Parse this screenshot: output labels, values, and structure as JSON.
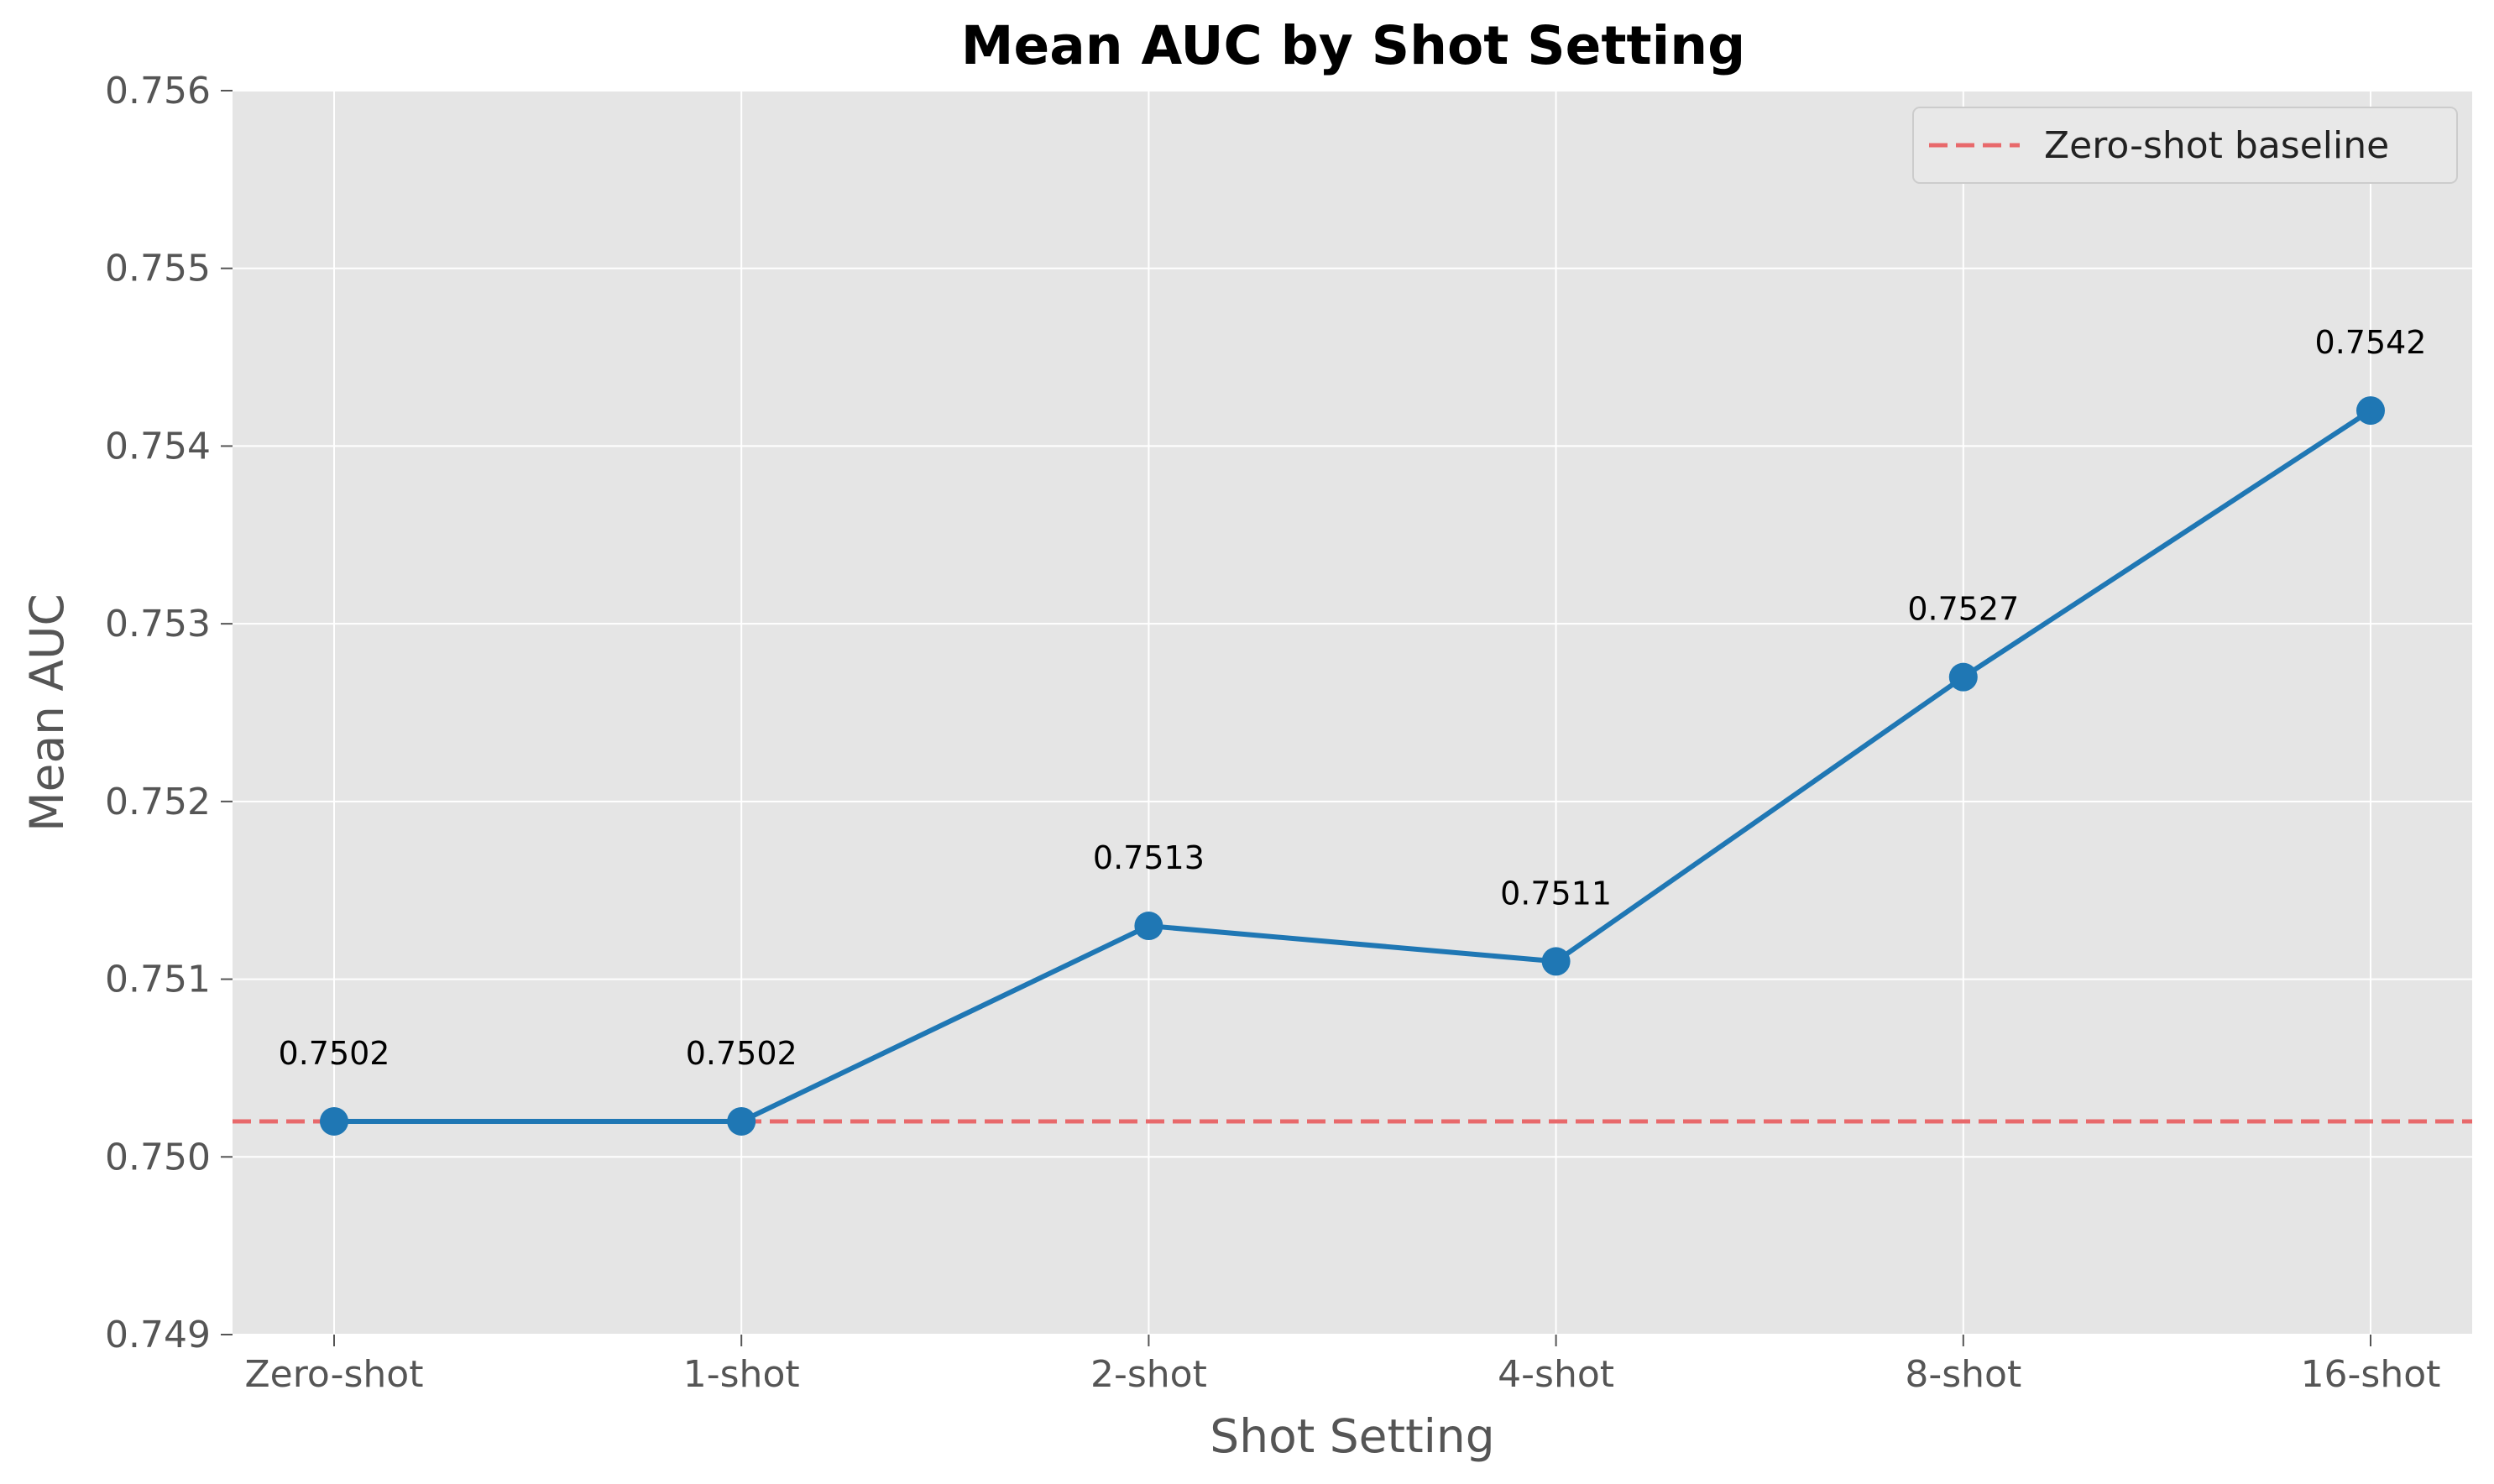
{
  "chart_data": {
    "type": "line",
    "title": "Mean AUC by Shot Setting",
    "xlabel": "Shot Setting",
    "ylabel": "Mean AUC",
    "categories": [
      "Zero-shot",
      "1-shot",
      "2-shot",
      "4-shot",
      "8-shot",
      "16-shot"
    ],
    "series": [
      {
        "values": [
          0.7502,
          0.7502,
          0.7513,
          0.7511,
          0.7527,
          0.7542
        ],
        "labels": [
          "0.7502",
          "0.7502",
          "0.7513",
          "0.7511",
          "0.7527",
          "0.7542"
        ],
        "color": "#1f77b4"
      }
    ],
    "baseline": {
      "name": "Zero-shot baseline",
      "value": 0.7502,
      "color": "#e8696b",
      "style": "dashed"
    },
    "ylim": [
      0.749,
      0.756
    ],
    "yticks": [
      "0.749",
      "0.750",
      "0.751",
      "0.752",
      "0.753",
      "0.754",
      "0.755",
      "0.756"
    ],
    "grid": true,
    "legend": {
      "position": "top-right"
    },
    "colors": {
      "plot_background": "#e5e5e5",
      "grid": "#ffffff",
      "tick": "#555555"
    }
  }
}
